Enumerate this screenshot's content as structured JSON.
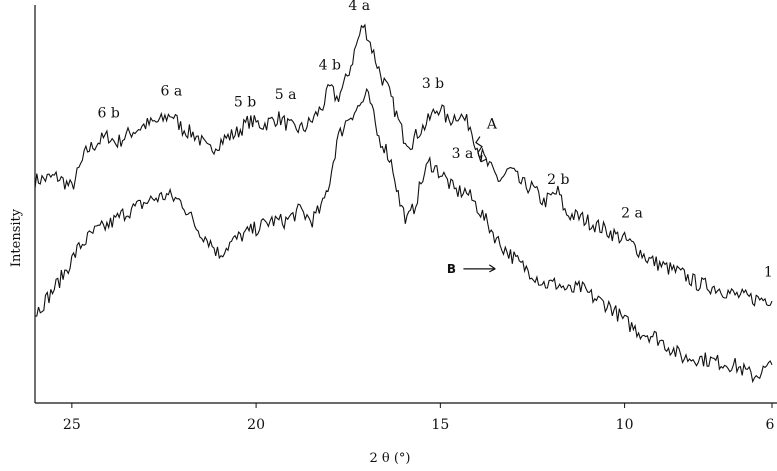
{
  "chart_data": {
    "type": "line",
    "title": "",
    "xlabel": "2 θ (°)",
    "ylabel": "Intensity",
    "xlim": [
      26,
      6
    ],
    "ylim": [
      0,
      100
    ],
    "x_reversed": true,
    "x_ticks": [
      25,
      20,
      15,
      10,
      6
    ],
    "x_tick_labels": [
      "25",
      "20",
      "15",
      "10",
      "6"
    ],
    "grid": false,
    "series": [
      {
        "name": "A",
        "points": [
          [
            26,
            58
          ],
          [
            25.4,
            59
          ],
          [
            25,
            56
          ],
          [
            24.6,
            66
          ],
          [
            24.2,
            69
          ],
          [
            24,
            70
          ],
          [
            23.8,
            68
          ],
          [
            23.4,
            71
          ],
          [
            23,
            73
          ],
          [
            22.6,
            74
          ],
          [
            22.3,
            76
          ],
          [
            22,
            72
          ],
          [
            21.6,
            70
          ],
          [
            21.3,
            66
          ],
          [
            20.9,
            69
          ],
          [
            20.5,
            71
          ],
          [
            20.2,
            74
          ],
          [
            19.8,
            73
          ],
          [
            19.4,
            75
          ],
          [
            19,
            72
          ],
          [
            18.7,
            72
          ],
          [
            18.5,
            74
          ],
          [
            18.2,
            78
          ],
          [
            18,
            83
          ],
          [
            17.8,
            80
          ],
          [
            17.6,
            84
          ],
          [
            17.4,
            90
          ],
          [
            17.3,
            94
          ],
          [
            17.2,
            97
          ],
          [
            17.1,
            100
          ],
          [
            17,
            98
          ],
          [
            16.8,
            92
          ],
          [
            16.6,
            86
          ],
          [
            16.4,
            82
          ],
          [
            16.2,
            76
          ],
          [
            16,
            70
          ],
          [
            15.8,
            68
          ],
          [
            15.6,
            71
          ],
          [
            15.4,
            73
          ],
          [
            15.2,
            76
          ],
          [
            15,
            78
          ],
          [
            14.8,
            74
          ],
          [
            14.5,
            76
          ],
          [
            14.2,
            73
          ],
          [
            14,
            67
          ],
          [
            13.7,
            62
          ],
          [
            13.4,
            58
          ],
          [
            13.1,
            61
          ],
          [
            12.8,
            57
          ],
          [
            12.5,
            56
          ],
          [
            12.2,
            52
          ],
          [
            11.8,
            55
          ],
          [
            11.6,
            49
          ],
          [
            11.2,
            48
          ],
          [
            10.8,
            46
          ],
          [
            10.4,
            44
          ],
          [
            10,
            42
          ],
          [
            9.7,
            40
          ],
          [
            9.4,
            37
          ],
          [
            9,
            35
          ],
          [
            8.5,
            33
          ],
          [
            8,
            30
          ],
          [
            7.5,
            29
          ],
          [
            7,
            27
          ],
          [
            6.5,
            26
          ],
          [
            6,
            26
          ]
        ]
      },
      {
        "name": "B",
        "points": [
          [
            26,
            22
          ],
          [
            25.6,
            27
          ],
          [
            25.2,
            33
          ],
          [
            24.8,
            40
          ],
          [
            24.4,
            44
          ],
          [
            24,
            46
          ],
          [
            23.6,
            49
          ],
          [
            23.2,
            51
          ],
          [
            22.8,
            53
          ],
          [
            22.4,
            54
          ],
          [
            22,
            52
          ],
          [
            21.6,
            45
          ],
          [
            21.3,
            42
          ],
          [
            21,
            38
          ],
          [
            20.7,
            41
          ],
          [
            20.4,
            43
          ],
          [
            20,
            45
          ],
          [
            19.6,
            47
          ],
          [
            19.2,
            47
          ],
          [
            18.8,
            50
          ],
          [
            18.5,
            47
          ],
          [
            18.2,
            51
          ],
          [
            18,
            58
          ],
          [
            17.8,
            69
          ],
          [
            17.5,
            75
          ],
          [
            17.2,
            78
          ],
          [
            17,
            81
          ],
          [
            16.9,
            79
          ],
          [
            16.7,
            70
          ],
          [
            16.5,
            67
          ],
          [
            16.3,
            62
          ],
          [
            16.1,
            52
          ],
          [
            15.9,
            47
          ],
          [
            15.7,
            51
          ],
          [
            15.5,
            58
          ],
          [
            15.3,
            63
          ],
          [
            15.1,
            61
          ],
          [
            14.9,
            59
          ],
          [
            14.6,
            55
          ],
          [
            14.3,
            55
          ],
          [
            14,
            51
          ],
          [
            13.7,
            46
          ],
          [
            13.4,
            41
          ],
          [
            13.1,
            38
          ],
          [
            12.8,
            35
          ],
          [
            12.5,
            33
          ],
          [
            12.2,
            30
          ],
          [
            11.8,
            30
          ],
          [
            11.5,
            28
          ],
          [
            11.2,
            29
          ],
          [
            10.8,
            26
          ],
          [
            10.4,
            24
          ],
          [
            10,
            20
          ],
          [
            9.6,
            17
          ],
          [
            9.2,
            16
          ],
          [
            8.8,
            13
          ],
          [
            8.4,
            10
          ],
          [
            8,
            10
          ],
          [
            7.5,
            9
          ],
          [
            7,
            8
          ],
          [
            6.5,
            5
          ],
          [
            6,
            8
          ]
        ]
      }
    ],
    "peak_labels": [
      {
        "text": "6 b",
        "x": 24.0,
        "y": 75
      },
      {
        "text": "6 a",
        "x": 22.3,
        "y": 81
      },
      {
        "text": "5 b",
        "x": 20.3,
        "y": 78
      },
      {
        "text": "5 a",
        "x": 19.2,
        "y": 80
      },
      {
        "text": "4 b",
        "x": 18.0,
        "y": 88
      },
      {
        "text": "4 a",
        "x": 17.2,
        "y": 104
      },
      {
        "text": "3 b",
        "x": 15.2,
        "y": 83
      },
      {
        "text": "3 a",
        "x": 14.4,
        "y": 64
      },
      {
        "text": "2 b",
        "x": 11.8,
        "y": 57
      },
      {
        "text": "2 a",
        "x": 9.8,
        "y": 48
      },
      {
        "text": "1",
        "x": 6.1,
        "y": 32
      }
    ],
    "curve_markers": [
      {
        "text": "A",
        "x": 13.6,
        "y": 72,
        "arrow_to": [
          13.9,
          63
        ]
      },
      {
        "text": "B",
        "x": 14.7,
        "y": 33,
        "arrow_to": [
          13.4,
          33
        ]
      }
    ]
  }
}
